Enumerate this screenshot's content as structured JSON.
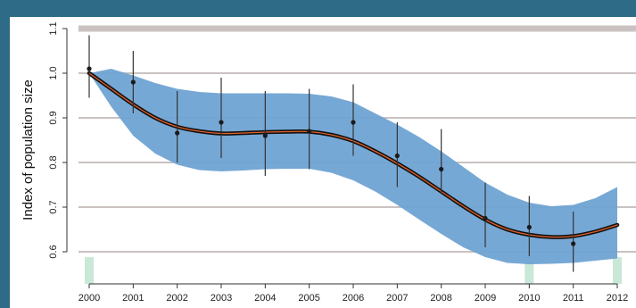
{
  "chart_data": {
    "type": "line",
    "ylabel": "Index of population size",
    "xlim": [
      2000,
      2012
    ],
    "ylim": [
      0.55,
      1.1
    ],
    "x_ticks": [
      "2000",
      "2001",
      "2002",
      "2003",
      "2004",
      "2005",
      "2006",
      "2007",
      "2008",
      "2009",
      "2010",
      "2011",
      "2012"
    ],
    "y_ticks": [
      "0.6",
      "0.7",
      "0.8",
      "0.9",
      "1.0",
      "1.1"
    ],
    "grid": true,
    "colors": {
      "band": "#6fa3d3",
      "trend": "#111111",
      "trend_inner": "#e0602a",
      "points": "#1a1a1a",
      "grid": "#c9c2c0",
      "frame": "#2e6b86",
      "markers": "#9fd6b8"
    },
    "series": [
      {
        "role": "smoothed-trend",
        "x": [
          2000,
          2000.5,
          2001,
          2001.5,
          2002,
          2002.5,
          2003,
          2003.5,
          2004,
          2004.5,
          2005,
          2005.5,
          2006,
          2006.5,
          2007,
          2007.5,
          2008,
          2008.5,
          2009,
          2009.5,
          2010,
          2010.5,
          2011,
          2011.5,
          2012
        ],
        "y": [
          1.0,
          0.965,
          0.93,
          0.9,
          0.88,
          0.87,
          0.865,
          0.866,
          0.868,
          0.869,
          0.869,
          0.862,
          0.848,
          0.825,
          0.798,
          0.768,
          0.735,
          0.702,
          0.672,
          0.65,
          0.638,
          0.633,
          0.635,
          0.645,
          0.66
        ]
      },
      {
        "role": "confidence-band",
        "x": [
          2000,
          2000.5,
          2001,
          2001.5,
          2002,
          2002.5,
          2003,
          2003.5,
          2004,
          2004.5,
          2005,
          2005.5,
          2006,
          2006.5,
          2007,
          2007.5,
          2008,
          2008.5,
          2009,
          2009.5,
          2010,
          2010.5,
          2011,
          2011.5,
          2012
        ],
        "lower": [
          1.0,
          0.925,
          0.86,
          0.82,
          0.795,
          0.783,
          0.78,
          0.782,
          0.785,
          0.786,
          0.786,
          0.777,
          0.76,
          0.735,
          0.705,
          0.672,
          0.64,
          0.61,
          0.588,
          0.575,
          0.572,
          0.573,
          0.575,
          0.58,
          0.585
        ],
        "upper": [
          1.0,
          1.01,
          0.995,
          0.978,
          0.965,
          0.958,
          0.955,
          0.955,
          0.955,
          0.955,
          0.954,
          0.948,
          0.935,
          0.91,
          0.885,
          0.857,
          0.825,
          0.79,
          0.755,
          0.728,
          0.71,
          0.702,
          0.705,
          0.72,
          0.745
        ]
      },
      {
        "role": "annual-estimates",
        "x": [
          2000,
          2001,
          2002,
          2003,
          2004,
          2005,
          2006,
          2007,
          2008,
          2009,
          2010,
          2011
        ],
        "y": [
          1.01,
          0.98,
          0.866,
          0.89,
          0.86,
          0.87,
          0.89,
          0.815,
          0.785,
          0.675,
          0.655,
          0.618
        ],
        "lower": [
          0.945,
          0.91,
          0.8,
          0.81,
          0.77,
          0.785,
          0.815,
          0.745,
          0.73,
          0.61,
          0.59,
          0.555
        ],
        "upper": [
          1.085,
          1.05,
          0.96,
          0.99,
          0.96,
          0.965,
          0.975,
          0.89,
          0.875,
          0.755,
          0.725,
          0.69
        ]
      }
    ],
    "x_markers": [
      2000,
      2010,
      2012
    ]
  }
}
